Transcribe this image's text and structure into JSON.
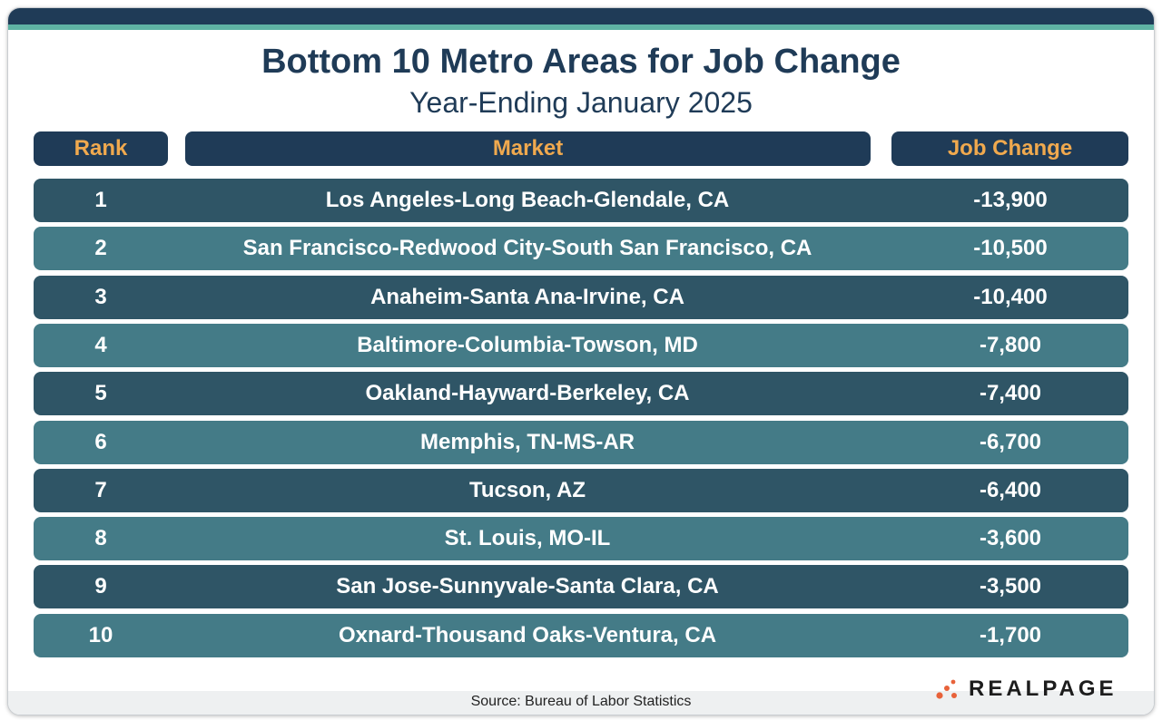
{
  "title": "Bottom 10 Metro Areas for Job Change",
  "subtitle": "Year-Ending January 2025",
  "headers": {
    "rank": "Rank",
    "market": "Market",
    "change": "Job Change"
  },
  "rows": [
    {
      "rank": "1",
      "market": "Los Angeles-Long Beach-Glendale, CA",
      "change": "-13,900"
    },
    {
      "rank": "2",
      "market": "San Francisco-Redwood City-South San Francisco, CA",
      "change": "-10,500"
    },
    {
      "rank": "3",
      "market": "Anaheim-Santa Ana-Irvine, CA",
      "change": "-10,400"
    },
    {
      "rank": "4",
      "market": "Baltimore-Columbia-Towson, MD",
      "change": "-7,800"
    },
    {
      "rank": "5",
      "market": "Oakland-Hayward-Berkeley, CA",
      "change": "-7,400"
    },
    {
      "rank": "6",
      "market": "Memphis, TN-MS-AR",
      "change": "-6,700"
    },
    {
      "rank": "7",
      "market": "Tucson, AZ",
      "change": "-6,400"
    },
    {
      "rank": "8",
      "market": "St. Louis, MO-IL",
      "change": "-3,600"
    },
    {
      "rank": "9",
      "market": "San Jose-Sunnyvale-Santa Clara, CA",
      "change": "-3,500"
    },
    {
      "rank": "10",
      "market": "Oxnard-Thousand Oaks-Ventura, CA",
      "change": "-1,700"
    }
  ],
  "source": "Source: Bureau of Labor Statistics",
  "logo": {
    "text": "REALPAGE",
    "icon": "realpage-dots-icon",
    "dot_color": "#e8623a"
  },
  "colors": {
    "navy": "#1f3b57",
    "row_dark": "#2f5566",
    "row_light": "#447b87",
    "header_text": "#f0a94e",
    "accent_stripe": "#5fb3a4"
  },
  "chart_data": {
    "type": "table",
    "title": "Bottom 10 Metro Areas for Job Change",
    "subtitle": "Year-Ending January 2025",
    "columns": [
      "Rank",
      "Market",
      "Job Change"
    ],
    "categories": [
      "Los Angeles-Long Beach-Glendale, CA",
      "San Francisco-Redwood City-South San Francisco, CA",
      "Anaheim-Santa Ana-Irvine, CA",
      "Baltimore-Columbia-Towson, MD",
      "Oakland-Hayward-Berkeley, CA",
      "Memphis, TN-MS-AR",
      "Tucson, AZ",
      "St. Louis, MO-IL",
      "San Jose-Sunnyvale-Santa Clara, CA",
      "Oxnard-Thousand Oaks-Ventura, CA"
    ],
    "values": [
      -13900,
      -10500,
      -10400,
      -7800,
      -7400,
      -6700,
      -6400,
      -3600,
      -3500,
      -1700
    ]
  }
}
